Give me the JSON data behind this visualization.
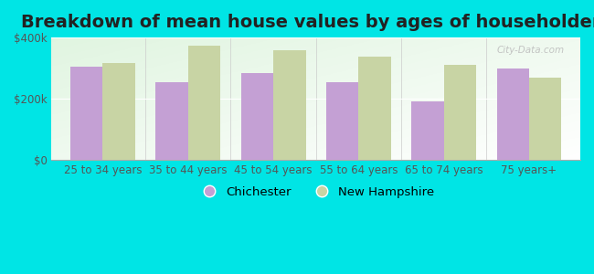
{
  "title": "Breakdown of mean house values by ages of householders",
  "categories": [
    "25 to 34 years",
    "35 to 44 years",
    "45 to 54 years",
    "55 to 64 years",
    "65 to 74 years",
    "75 years+"
  ],
  "chichester": [
    305000,
    255000,
    285000,
    255000,
    192000,
    300000
  ],
  "new_hampshire": [
    318000,
    372000,
    358000,
    338000,
    312000,
    268000
  ],
  "chichester_color": "#c4a0d4",
  "nh_color": "#c8d4a4",
  "background_color": "#00e5e5",
  "ylim": [
    0,
    400000
  ],
  "yticks": [
    0,
    200000,
    400000
  ],
  "ytick_labels": [
    "$0",
    "$200k",
    "$400k"
  ],
  "legend_chichester": "Chichester",
  "legend_nh": "New Hampshire",
  "title_fontsize": 14,
  "tick_fontsize": 8.5,
  "legend_fontsize": 9.5,
  "bar_width": 0.38
}
